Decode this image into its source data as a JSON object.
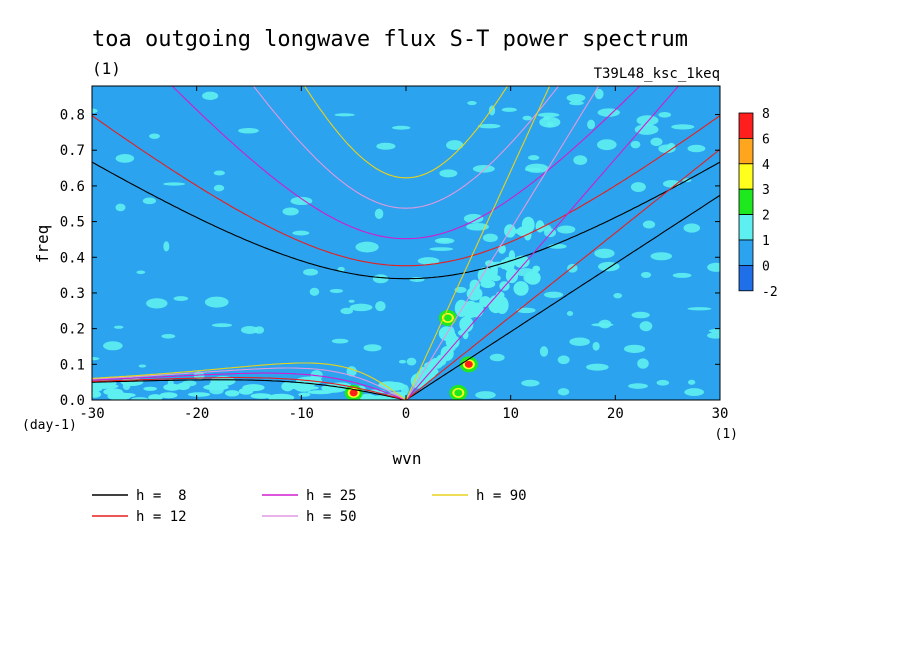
{
  "chart_data": {
    "type": "heatmap",
    "title": "toa outgoing longwave flux S-T power spectrum",
    "title_unit": "(1)",
    "run_label": "T39L48_ksc_1keq",
    "xlabel": "wvn",
    "x_unit": "(1)",
    "ylabel": "freq",
    "y_unit": "(day-1)",
    "xlim": [
      -30,
      30
    ],
    "ylim": [
      0,
      0.88
    ],
    "x_ticks": [
      -30,
      -20,
      -10,
      0,
      10,
      20,
      30
    ],
    "x_tick_labels": [
      "-30",
      "-20",
      "-10",
      "0",
      "10",
      "20",
      "30"
    ],
    "y_ticks": [
      0,
      0.1,
      0.2,
      0.3,
      0.4,
      0.5,
      0.6,
      0.7,
      0.8
    ],
    "y_tick_labels": [
      "0.0",
      "0.1",
      "0.2",
      "0.3",
      "0.4",
      "0.5",
      "0.6",
      "0.7",
      "0.8"
    ],
    "colorbar": {
      "levels": [
        -2,
        0,
        1,
        2,
        3,
        4,
        6,
        8
      ],
      "labels": [
        "-2",
        "0",
        "1",
        "2",
        "3",
        "4",
        "6",
        "8"
      ],
      "colors": [
        "#1f6fe8",
        "#2ba3ee",
        "#5ef0f0",
        "#1ee81e",
        "#ffff1e",
        "#ffa61e",
        "#ff1e1e"
      ]
    },
    "background_level_color": "#2ba3ee",
    "background_color_note": "dominant contour level 0 to 1",
    "anomaly_patches": [
      {
        "x": -5,
        "y": 0.02,
        "level_color": "#ff1e1e"
      },
      {
        "x": 6,
        "y": 0.1,
        "level_color": "#ff1e1e"
      },
      {
        "x": 4,
        "y": 0.23,
        "level_color": "#1ee81e"
      },
      {
        "x": 5,
        "y": 0.02,
        "level_color": "#1ee81e"
      }
    ],
    "dispersion_curves": [
      {
        "label": "h =  8",
        "h": 8,
        "color": "#000000"
      },
      {
        "label": "h = 12",
        "h": 12,
        "color": "#e81e1e"
      },
      {
        "label": "h = 25",
        "h": 25,
        "color": "#d01ed0"
      },
      {
        "label": "h = 50",
        "h": 50,
        "color": "#e09ae0"
      },
      {
        "label": "h = 90",
        "h": 90,
        "color": "#e8d21e"
      }
    ]
  }
}
